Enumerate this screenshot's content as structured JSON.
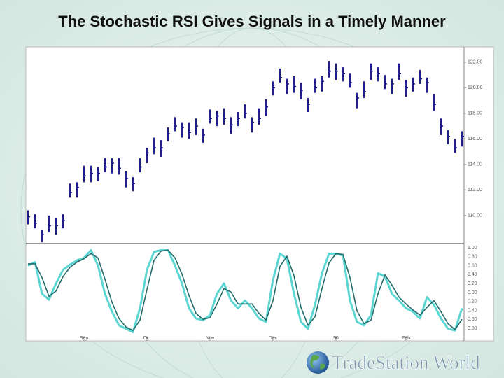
{
  "title": "The Stochastic RSI Gives Signals in a Timely Manner",
  "logo": "TradeStation World",
  "chart_data": [
    {
      "type": "ohlc",
      "categories": [
        null,
        null,
        null,
        null,
        null,
        null,
        null,
        null,
        "Sep",
        null,
        null,
        null,
        null,
        null,
        null,
        null,
        null,
        "Oct",
        null,
        null,
        null,
        null,
        null,
        null,
        null,
        null,
        "Nov",
        null,
        null,
        null,
        null,
        null,
        null,
        null,
        null,
        "Dec",
        null,
        null,
        null,
        null,
        null,
        null,
        null,
        null,
        "96",
        null,
        null,
        null,
        null,
        null,
        null,
        null,
        null,
        null,
        "Feb",
        null,
        null,
        null,
        null,
        null,
        null,
        null,
        null
      ],
      "values": [
        109.9,
        109.4,
        108.5,
        109.2,
        109.2,
        109.6,
        111.8,
        112.2,
        113.1,
        113.3,
        113.3,
        113.8,
        114.1,
        113.7,
        112.9,
        112.5,
        113.8,
        114.9,
        115.3,
        115.3,
        116.4,
        117.0,
        116.9,
        116.5,
        117.0,
        116.3,
        117.6,
        117.8,
        117.6,
        117.1,
        117.6,
        118.0,
        117.3,
        117.6,
        118.5,
        120.0,
        120.8,
        120.3,
        120.1,
        119.8,
        118.7,
        120.0,
        120.5,
        121.3,
        121.3,
        121.1,
        120.4,
        119.2,
        119.7,
        121.3,
        121.1,
        120.3,
        120.3,
        121.1,
        120.0,
        120.3,
        120.7,
        120.4,
        118.7,
        117.0,
        116.2,
        115.3,
        116.2
      ],
      "high": [
        110.4,
        110.1,
        108.9,
        110.0,
        109.8,
        110.1,
        112.5,
        112.6,
        113.9,
        113.9,
        113.8,
        114.5,
        114.5,
        114.5,
        113.5,
        113.0,
        114.5,
        115.3,
        116.1,
        115.9,
        116.9,
        117.7,
        117.3,
        117.3,
        117.6,
        116.8,
        118.3,
        118.2,
        118.4,
        117.7,
        118.1,
        118.7,
        117.7,
        118.4,
        119.1,
        120.5,
        121.5,
        120.7,
        120.9,
        120.4,
        119.2,
        120.7,
        120.9,
        122.1,
        121.9,
        121.6,
        121.1,
        119.6,
        120.5,
        121.9,
        121.6,
        121.0,
        120.7,
        121.9,
        120.6,
        120.8,
        121.4,
        120.8,
        119.5,
        117.6,
        116.7,
        116.0,
        116.6
      ],
      "low": [
        109.3,
        109.0,
        107.9,
        108.7,
        108.5,
        109.0,
        111.4,
        111.4,
        112.6,
        112.6,
        112.7,
        113.4,
        113.3,
        113.2,
        112.2,
        111.9,
        113.4,
        114.1,
        114.8,
        114.6,
        115.8,
        116.6,
        116.1,
        116.0,
        116.3,
        115.7,
        117.2,
        117.0,
        117.1,
        116.4,
        117.0,
        117.6,
        116.5,
        117.1,
        117.8,
        119.4,
        120.4,
        119.5,
        119.6,
        119.1,
        118.1,
        119.6,
        119.7,
        120.8,
        120.6,
        120.5,
        120.0,
        118.4,
        119.2,
        120.6,
        120.5,
        119.9,
        119.5,
        120.6,
        119.3,
        119.7,
        120.3,
        119.6,
        118.2,
        116.3,
        115.6,
        114.9,
        115.4
      ],
      "color": "#1c1f8c",
      "ylim": [
        107.8,
        123.2
      ],
      "yticks": [
        {
          "value": 122,
          "label": "122.00"
        },
        {
          "value": 120,
          "label": "120.00"
        },
        {
          "value": 118,
          "label": "118.00"
        },
        {
          "value": 116,
          "label": "116.00"
        },
        {
          "value": 114,
          "label": "114.00"
        },
        {
          "value": 112,
          "label": "112.00"
        },
        {
          "value": 110,
          "label": "110.00"
        }
      ]
    },
    {
      "type": "line",
      "series": [
        {
          "color": "#5cd6d2",
          "values": [
            0.8,
            0.84,
            0.47,
            0.4,
            0.59,
            0.75,
            0.81,
            0.86,
            0.89,
            0.98,
            0.8,
            0.47,
            0.26,
            0.1,
            0.06,
            0.02,
            0.3,
            0.75,
            0.96,
            0.98,
            0.98,
            0.8,
            0.59,
            0.3,
            0.18,
            0.16,
            0.22,
            0.47,
            0.59,
            0.39,
            0.3,
            0.39,
            0.3,
            0.18,
            0.14,
            0.63,
            0.94,
            0.88,
            0.47,
            0.14,
            0.06,
            0.34,
            0.71,
            0.94,
            0.94,
            0.92,
            0.39,
            0.14,
            0.1,
            0.22,
            0.71,
            0.67,
            0.47,
            0.39,
            0.3,
            0.26,
            0.18,
            0.43,
            0.34,
            0.18,
            0.06,
            0.04,
            0.3
          ]
        },
        {
          "color": "#236b6a",
          "values": [
            0.82,
            0.82,
            0.66,
            0.44,
            0.5,
            0.67,
            0.78,
            0.84,
            0.88,
            0.94,
            0.89,
            0.64,
            0.37,
            0.18,
            0.08,
            0.04,
            0.16,
            0.52,
            0.86,
            0.97,
            0.98,
            0.89,
            0.7,
            0.45,
            0.24,
            0.17,
            0.19,
            0.35,
            0.53,
            0.49,
            0.35,
            0.35,
            0.35,
            0.24,
            0.16,
            0.39,
            0.79,
            0.91,
            0.68,
            0.31,
            0.1,
            0.2,
            0.53,
            0.83,
            0.94,
            0.93,
            0.66,
            0.27,
            0.12,
            0.16,
            0.47,
            0.69,
            0.57,
            0.43,
            0.35,
            0.28,
            0.22,
            0.31,
            0.39,
            0.26,
            0.12,
            0.05,
            0.17
          ]
        }
      ],
      "ylim": [
        0,
        1
      ],
      "axis_labels": [
        "1.00",
        "0.80",
        "0.60",
        "0.40",
        "0.20",
        "0.00",
        "0.20",
        "0.40",
        "0.60",
        "0.80"
      ]
    }
  ]
}
